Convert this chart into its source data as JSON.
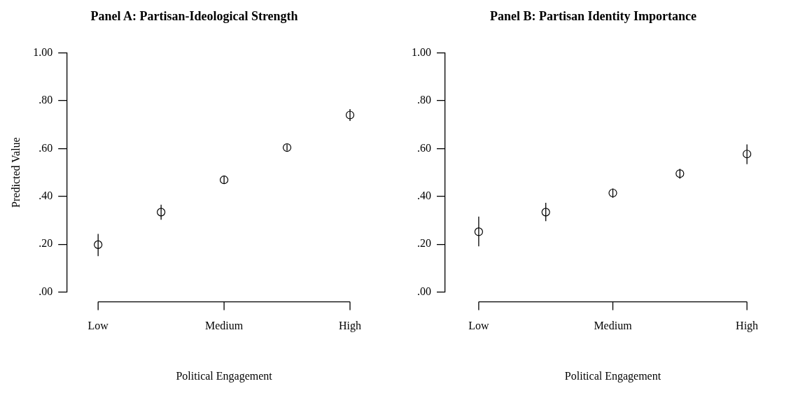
{
  "chart_data": [
    {
      "type": "scatter",
      "title": "Panel A: Partisan-Ideological Strength",
      "xlabel": "Political Engagement",
      "ylabel": "Predicted Value",
      "categories": [
        "Low",
        null,
        "Medium",
        null,
        "High"
      ],
      "values": [
        0.198,
        0.334,
        0.469,
        0.604,
        0.74
      ],
      "errors": [
        [
          0.15,
          0.243
        ],
        [
          0.302,
          0.365
        ],
        [
          0.452,
          0.484
        ],
        [
          0.591,
          0.617
        ],
        [
          0.715,
          0.765
        ]
      ],
      "color": "#000000",
      "marker": "circle",
      "ylim": [
        0,
        1
      ],
      "yticks": [
        {
          "value": 0,
          "label": ".00"
        },
        {
          "value": 0.2,
          "label": ".20"
        },
        {
          "value": 0.4,
          "label": ".40"
        },
        {
          "value": 0.6,
          "label": ".60"
        },
        {
          "value": 0.8,
          "label": ".80"
        },
        {
          "value": 1,
          "label": "1.00"
        }
      ]
    },
    {
      "type": "scatter",
      "title": "Panel B: Partisan Identity Importance",
      "xlabel": "Political Engagement",
      "categories": [
        "Low",
        null,
        "Medium",
        null,
        "High"
      ],
      "values": [
        0.252,
        0.334,
        0.414,
        0.495,
        0.577
      ],
      "errors": [
        [
          0.191,
          0.315
        ],
        [
          0.296,
          0.373
        ],
        [
          0.394,
          0.433
        ],
        [
          0.474,
          0.515
        ],
        [
          0.535,
          0.617
        ]
      ],
      "color": "#000000",
      "marker": "circle",
      "ylim": [
        0,
        1
      ],
      "yticks": [
        {
          "value": 0,
          "label": ".00"
        },
        {
          "value": 0.2,
          "label": ".20"
        },
        {
          "value": 0.4,
          "label": ".40"
        },
        {
          "value": 0.6,
          "label": ".60"
        },
        {
          "value": 0.8,
          "label": ".80"
        },
        {
          "value": 1,
          "label": "1.00"
        }
      ]
    }
  ]
}
